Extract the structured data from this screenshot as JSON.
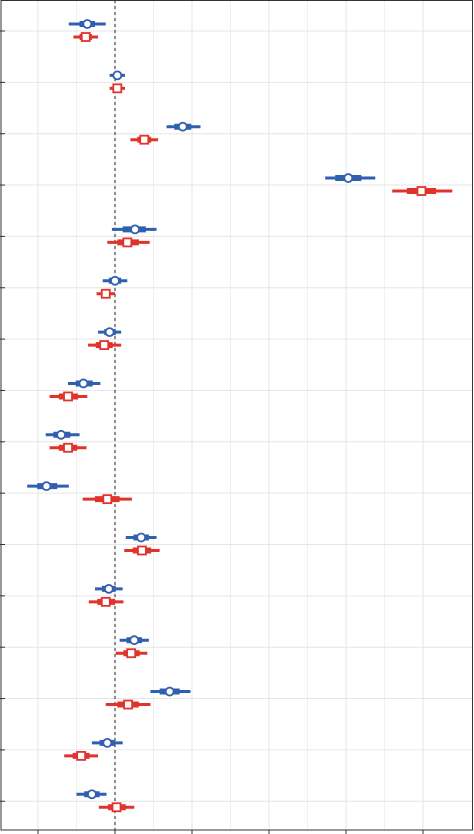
{
  "chart_data": {
    "type": "scatter",
    "subtype": "forest-plot",
    "orientation": "horizontal",
    "title": "",
    "xlabel": "",
    "ylabel": "",
    "xlim": [
      -1.0,
      4.6
    ],
    "x_gridlines": [
      -1,
      0,
      1,
      2,
      3,
      4
    ],
    "reference_line": {
      "x": 0,
      "style": "dotted"
    },
    "n_rows": 16,
    "grid": true,
    "legend": "none",
    "series": [
      {
        "marker": "circle",
        "color": "#2f5fae",
        "points": [
          {
            "row": 1,
            "est": -0.36,
            "lo": -0.6,
            "hi": -0.12,
            "lo_in": -0.46,
            "hi_in": -0.26
          },
          {
            "row": 2,
            "est": 0.03,
            "lo": -0.07,
            "hi": 0.13,
            "lo_in": -0.01,
            "hi_in": 0.07
          },
          {
            "row": 3,
            "est": 0.88,
            "lo": 0.67,
            "hi": 1.11,
            "lo_in": 0.77,
            "hi_in": 0.99
          },
          {
            "row": 4,
            "est": 3.03,
            "lo": 2.73,
            "hi": 3.38,
            "lo_in": 2.86,
            "hi_in": 3.2
          },
          {
            "row": 5,
            "est": 0.26,
            "lo": -0.04,
            "hi": 0.54,
            "lo_in": 0.1,
            "hi_in": 0.4
          },
          {
            "row": 6,
            "est": 0.0,
            "lo": -0.16,
            "hi": 0.16,
            "lo_in": -0.08,
            "hi_in": 0.08
          },
          {
            "row": 7,
            "est": -0.07,
            "lo": -0.22,
            "hi": 0.08,
            "lo_in": -0.14,
            "hi_in": 0.01
          },
          {
            "row": 8,
            "est": -0.41,
            "lo": -0.61,
            "hi": -0.19,
            "lo_in": -0.51,
            "hi_in": -0.29
          },
          {
            "row": 9,
            "est": -0.7,
            "lo": -0.9,
            "hi": -0.46,
            "lo_in": -0.8,
            "hi_in": -0.58
          },
          {
            "row": 10,
            "est": -0.89,
            "lo": -1.14,
            "hi": -0.6,
            "lo_in": -1.01,
            "hi_in": -0.75
          },
          {
            "row": 11,
            "est": 0.34,
            "lo": 0.14,
            "hi": 0.54,
            "lo_in": 0.24,
            "hi_in": 0.44
          },
          {
            "row": 12,
            "est": -0.08,
            "lo": -0.26,
            "hi": 0.1,
            "lo_in": -0.17,
            "hi_in": 0.01
          },
          {
            "row": 13,
            "est": 0.25,
            "lo": 0.06,
            "hi": 0.44,
            "lo_in": 0.15,
            "hi_in": 0.35
          },
          {
            "row": 14,
            "est": 0.71,
            "lo": 0.46,
            "hi": 0.98,
            "lo_in": 0.58,
            "hi_in": 0.84
          },
          {
            "row": 15,
            "est": -0.1,
            "lo": -0.3,
            "hi": 0.1,
            "lo_in": -0.2,
            "hi_in": 0.0
          },
          {
            "row": 16,
            "est": -0.3,
            "lo": -0.5,
            "hi": -0.11,
            "lo_in": -0.4,
            "hi_in": -0.2
          }
        ]
      },
      {
        "marker": "square",
        "color": "#e0332c",
        "points": [
          {
            "row": 1,
            "est": -0.38,
            "lo": -0.54,
            "hi": -0.22,
            "lo_in": -0.46,
            "hi_in": -0.3
          },
          {
            "row": 2,
            "est": 0.03,
            "lo": -0.07,
            "hi": 0.13,
            "lo_in": -0.01,
            "hi_in": 0.07
          },
          {
            "row": 3,
            "est": 0.38,
            "lo": 0.2,
            "hi": 0.56,
            "lo_in": 0.29,
            "hi_in": 0.47
          },
          {
            "row": 4,
            "est": 3.98,
            "lo": 3.6,
            "hi": 4.38,
            "lo_in": 3.79,
            "hi_in": 4.17
          },
          {
            "row": 5,
            "est": 0.16,
            "lo": -0.1,
            "hi": 0.45,
            "lo_in": 0.03,
            "hi_in": 0.31
          },
          {
            "row": 6,
            "est": -0.12,
            "lo": -0.24,
            "hi": 0.0,
            "lo_in": -0.18,
            "hi_in": -0.06
          },
          {
            "row": 7,
            "est": -0.14,
            "lo": -0.35,
            "hi": 0.08,
            "lo_in": -0.25,
            "hi_in": -0.03
          },
          {
            "row": 8,
            "est": -0.61,
            "lo": -0.85,
            "hi": -0.36,
            "lo_in": -0.73,
            "hi_in": -0.48
          },
          {
            "row": 9,
            "est": -0.61,
            "lo": -0.85,
            "hi": -0.37,
            "lo_in": -0.73,
            "hi_in": -0.49
          },
          {
            "row": 10,
            "est": -0.1,
            "lo": -0.42,
            "hi": 0.22,
            "lo_in": -0.26,
            "hi_in": 0.06
          },
          {
            "row": 11,
            "est": 0.35,
            "lo": 0.12,
            "hi": 0.58,
            "lo_in": 0.23,
            "hi_in": 0.47
          },
          {
            "row": 12,
            "est": -0.12,
            "lo": -0.34,
            "hi": 0.11,
            "lo_in": -0.23,
            "hi_in": 0.0
          },
          {
            "row": 13,
            "est": 0.21,
            "lo": 0.01,
            "hi": 0.42,
            "lo_in": 0.11,
            "hi_in": 0.32
          },
          {
            "row": 14,
            "est": 0.17,
            "lo": -0.12,
            "hi": 0.46,
            "lo_in": 0.03,
            "hi_in": 0.31
          },
          {
            "row": 15,
            "est": -0.44,
            "lo": -0.66,
            "hi": -0.22,
            "lo_in": -0.55,
            "hi_in": -0.33
          },
          {
            "row": 16,
            "est": 0.02,
            "lo": -0.21,
            "hi": 0.25,
            "lo_in": -0.09,
            "hi_in": 0.14
          }
        ]
      }
    ]
  }
}
